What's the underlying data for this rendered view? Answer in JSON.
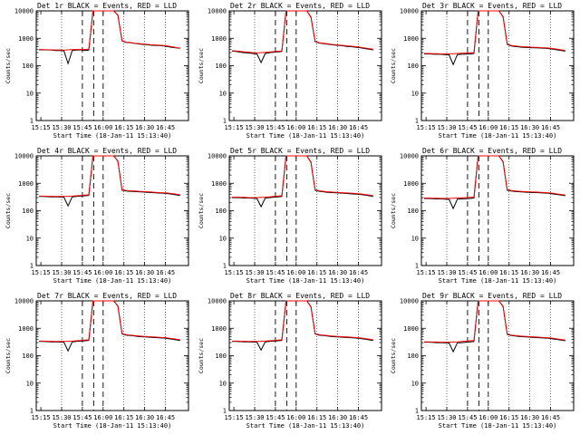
{
  "chart_data": {
    "type": "line",
    "layout": "3x3 grid",
    "y_scale": "log",
    "ylim": [
      1,
      10000
    ],
    "ylabel": "Counts/sec",
    "xlabel": "Start Time (18-Jan-11 15:13:40)",
    "x_ticks": [
      "15:15",
      "15:30",
      "15:45",
      "16:00",
      "16:15",
      "16:30",
      "16:45"
    ],
    "y_ticks": [
      "1",
      "10",
      "100",
      "1000",
      "10000"
    ],
    "series_colors": {
      "events": "#000000",
      "lld": "#ff0000"
    },
    "panels": [
      {
        "title": "Det 1r BLACK = Events, RED = LLD",
        "x": [
          0,
          3,
          6,
          9,
          12,
          15,
          18,
          21,
          24,
          27,
          30,
          33,
          36,
          39,
          42,
          45,
          48,
          51,
          54,
          57,
          60,
          63,
          66,
          69,
          72,
          75,
          78,
          81,
          84,
          87,
          90,
          93,
          96,
          99,
          102
        ],
        "events": [
          380,
          380,
          375,
          370,
          360,
          360,
          350,
          120,
          360,
          370,
          380,
          360,
          370,
          10000,
          10000,
          10000,
          10000,
          10000,
          10000,
          7000,
          800,
          700,
          690,
          650,
          620,
          600,
          580,
          560,
          550,
          540,
          520,
          500,
          470,
          450,
          430
        ],
        "lld": [
          390,
          385,
          380,
          380,
          375,
          375,
          370,
          380,
          385,
          390,
          395,
          390,
          400,
          10000,
          10000,
          10000,
          10000,
          10000,
          10000,
          6800,
          820,
          720,
          700,
          660,
          640,
          620,
          600,
          580,
          570,
          560,
          540,
          520,
          490,
          460,
          440
        ]
      },
      {
        "title": "Det 2r BLACK = Events, RED = LLD",
        "x": [
          0,
          3,
          6,
          9,
          12,
          15,
          18,
          21,
          24,
          27,
          30,
          33,
          36,
          39,
          42,
          45,
          48,
          51,
          54,
          57,
          60,
          63,
          66,
          69,
          72,
          75,
          78,
          81,
          84,
          87,
          90,
          93,
          96,
          99,
          102
        ],
        "events": [
          340,
          330,
          310,
          300,
          290,
          280,
          270,
          130,
          280,
          300,
          310,
          320,
          330,
          10000,
          10000,
          10000,
          10000,
          10000,
          10000,
          6000,
          760,
          670,
          640,
          610,
          580,
          560,
          540,
          520,
          500,
          490,
          470,
          450,
          420,
          400,
          380
        ],
        "lld": [
          350,
          345,
          330,
          320,
          310,
          300,
          295,
          300,
          305,
          315,
          325,
          335,
          345,
          10000,
          10000,
          10000,
          10000,
          10000,
          10000,
          5800,
          780,
          690,
          660,
          630,
          600,
          580,
          560,
          540,
          520,
          510,
          490,
          470,
          440,
          420,
          400
        ]
      },
      {
        "title": "Det 3r BLACK = Events, RED = LLD",
        "x": [
          0,
          3,
          6,
          9,
          12,
          15,
          18,
          21,
          24,
          27,
          30,
          33,
          36,
          39,
          42,
          45,
          48,
          51,
          54,
          57,
          60,
          63,
          66,
          69,
          72,
          75,
          78,
          81,
          84,
          87,
          90,
          93,
          96,
          99,
          102
        ],
        "events": [
          270,
          270,
          265,
          260,
          260,
          255,
          250,
          110,
          255,
          260,
          265,
          270,
          280,
          10000,
          10000,
          10000,
          10000,
          10000,
          10000,
          6200,
          600,
          520,
          500,
          480,
          470,
          460,
          450,
          450,
          440,
          430,
          420,
          400,
          380,
          360,
          340
        ],
        "lld": [
          280,
          280,
          275,
          275,
          270,
          270,
          270,
          275,
          280,
          285,
          290,
          295,
          300,
          10000,
          10000,
          10000,
          10000,
          10000,
          10000,
          6000,
          620,
          540,
          520,
          500,
          490,
          480,
          470,
          470,
          460,
          450,
          440,
          420,
          400,
          380,
          360
        ]
      },
      {
        "title": "Det 4r BLACK = Events, RED = LLD",
        "x": [
          0,
          3,
          6,
          9,
          12,
          15,
          18,
          21,
          24,
          27,
          30,
          33,
          36,
          39,
          42,
          45,
          48,
          51,
          54,
          57,
          60,
          63,
          66,
          69,
          72,
          75,
          78,
          81,
          84,
          87,
          90,
          93,
          96,
          99,
          102
        ],
        "events": [
          330,
          330,
          325,
          320,
          320,
          315,
          310,
          150,
          320,
          330,
          340,
          350,
          360,
          10000,
          10000,
          10000,
          10000,
          10000,
          10000,
          6500,
          560,
          520,
          510,
          500,
          490,
          480,
          470,
          460,
          450,
          440,
          430,
          420,
          400,
          380,
          360
        ],
        "lld": [
          340,
          340,
          335,
          335,
          330,
          330,
          330,
          335,
          340,
          350,
          360,
          370,
          380,
          10000,
          10000,
          10000,
          10000,
          10000,
          10000,
          6300,
          580,
          540,
          530,
          520,
          510,
          500,
          490,
          480,
          470,
          460,
          450,
          440,
          420,
          400,
          380
        ]
      },
      {
        "title": "Det 5r BLACK = Events, RED = LLD",
        "x": [
          0,
          3,
          6,
          9,
          12,
          15,
          18,
          21,
          24,
          27,
          30,
          33,
          36,
          39,
          42,
          45,
          48,
          51,
          54,
          57,
          60,
          63,
          66,
          69,
          72,
          75,
          78,
          81,
          84,
          87,
          90,
          93,
          96,
          99,
          102
        ],
        "events": [
          300,
          300,
          295,
          290,
          290,
          285,
          280,
          140,
          290,
          300,
          310,
          320,
          330,
          10000,
          10000,
          10000,
          10000,
          10000,
          10000,
          6000,
          560,
          510,
          490,
          470,
          460,
          450,
          440,
          430,
          420,
          410,
          400,
          390,
          370,
          350,
          330
        ],
        "lld": [
          310,
          310,
          305,
          305,
          300,
          300,
          300,
          305,
          310,
          320,
          330,
          340,
          350,
          10000,
          10000,
          10000,
          10000,
          10000,
          10000,
          5800,
          580,
          530,
          510,
          490,
          480,
          470,
          460,
          450,
          440,
          430,
          420,
          410,
          390,
          370,
          350
        ]
      },
      {
        "title": "Det 6r BLACK = Events, RED = LLD",
        "x": [
          0,
          3,
          6,
          9,
          12,
          15,
          18,
          21,
          24,
          27,
          30,
          33,
          36,
          39,
          42,
          45,
          48,
          51,
          54,
          57,
          60,
          63,
          66,
          69,
          72,
          75,
          78,
          81,
          84,
          87,
          90,
          93,
          96,
          99,
          102
        ],
        "events": [
          280,
          280,
          275,
          270,
          270,
          265,
          260,
          120,
          265,
          270,
          275,
          280,
          290,
          10000,
          10000,
          10000,
          10000,
          10000,
          10000,
          6200,
          560,
          520,
          500,
          490,
          480,
          470,
          460,
          460,
          450,
          440,
          430,
          410,
          390,
          370,
          350
        ],
        "lld": [
          290,
          290,
          285,
          285,
          280,
          280,
          280,
          285,
          290,
          295,
          300,
          305,
          310,
          10000,
          10000,
          10000,
          10000,
          10000,
          10000,
          6000,
          580,
          540,
          520,
          510,
          500,
          490,
          480,
          480,
          470,
          460,
          450,
          430,
          410,
          390,
          370
        ]
      },
      {
        "title": "Det 7r BLACK = Events, RED = LLD",
        "x": [
          0,
          3,
          6,
          9,
          12,
          15,
          18,
          21,
          24,
          27,
          30,
          33,
          36,
          39,
          42,
          45,
          48,
          51,
          54,
          57,
          60,
          63,
          66,
          69,
          72,
          75,
          78,
          81,
          84,
          87,
          90,
          93,
          96,
          99,
          102
        ],
        "events": [
          330,
          330,
          325,
          320,
          320,
          315,
          310,
          150,
          320,
          330,
          340,
          350,
          360,
          10000,
          10000,
          10000,
          10000,
          10000,
          10000,
          6500,
          620,
          560,
          540,
          520,
          500,
          490,
          480,
          470,
          460,
          450,
          440,
          420,
          400,
          380,
          360
        ],
        "lld": [
          340,
          340,
          335,
          335,
          330,
          330,
          330,
          335,
          340,
          350,
          360,
          370,
          380,
          10000,
          10000,
          10000,
          10000,
          10000,
          10000,
          6300,
          640,
          580,
          560,
          540,
          520,
          510,
          500,
          490,
          480,
          470,
          460,
          440,
          420,
          400,
          380
        ]
      },
      {
        "title": "Det 8r BLACK = Events, RED = LLD",
        "x": [
          0,
          3,
          6,
          9,
          12,
          15,
          18,
          21,
          24,
          27,
          30,
          33,
          36,
          39,
          42,
          45,
          48,
          51,
          54,
          57,
          60,
          63,
          66,
          69,
          72,
          75,
          78,
          81,
          84,
          87,
          90,
          93,
          96,
          99,
          102
        ],
        "events": [
          330,
          330,
          325,
          320,
          320,
          315,
          310,
          160,
          320,
          330,
          340,
          350,
          360,
          10000,
          10000,
          10000,
          10000,
          10000,
          10000,
          6200,
          620,
          560,
          540,
          520,
          500,
          490,
          480,
          470,
          460,
          450,
          440,
          420,
          400,
          380,
          360
        ],
        "lld": [
          340,
          340,
          335,
          335,
          330,
          330,
          330,
          335,
          340,
          350,
          360,
          370,
          380,
          10000,
          10000,
          10000,
          10000,
          10000,
          10000,
          6000,
          640,
          580,
          560,
          540,
          520,
          510,
          500,
          490,
          480,
          470,
          460,
          440,
          420,
          400,
          380
        ]
      },
      {
        "title": "Det 9r BLACK = Events, RED = LLD",
        "x": [
          0,
          3,
          6,
          9,
          12,
          15,
          18,
          21,
          24,
          27,
          30,
          33,
          36,
          39,
          42,
          45,
          48,
          51,
          54,
          57,
          60,
          63,
          66,
          69,
          72,
          75,
          78,
          81,
          84,
          87,
          90,
          93,
          96,
          99,
          102
        ],
        "events": [
          310,
          310,
          305,
          300,
          300,
          295,
          290,
          140,
          295,
          300,
          310,
          320,
          330,
          10000,
          10000,
          10000,
          10000,
          10000,
          10000,
          6400,
          600,
          540,
          520,
          500,
          490,
          480,
          470,
          460,
          450,
          440,
          430,
          410,
          390,
          370,
          350
        ],
        "lld": [
          320,
          320,
          315,
          315,
          310,
          310,
          310,
          315,
          320,
          330,
          340,
          350,
          360,
          10000,
          10000,
          10000,
          10000,
          10000,
          10000,
          6200,
          620,
          560,
          540,
          520,
          510,
          500,
          490,
          480,
          470,
          460,
          450,
          430,
          410,
          390,
          370
        ]
      }
    ]
  }
}
